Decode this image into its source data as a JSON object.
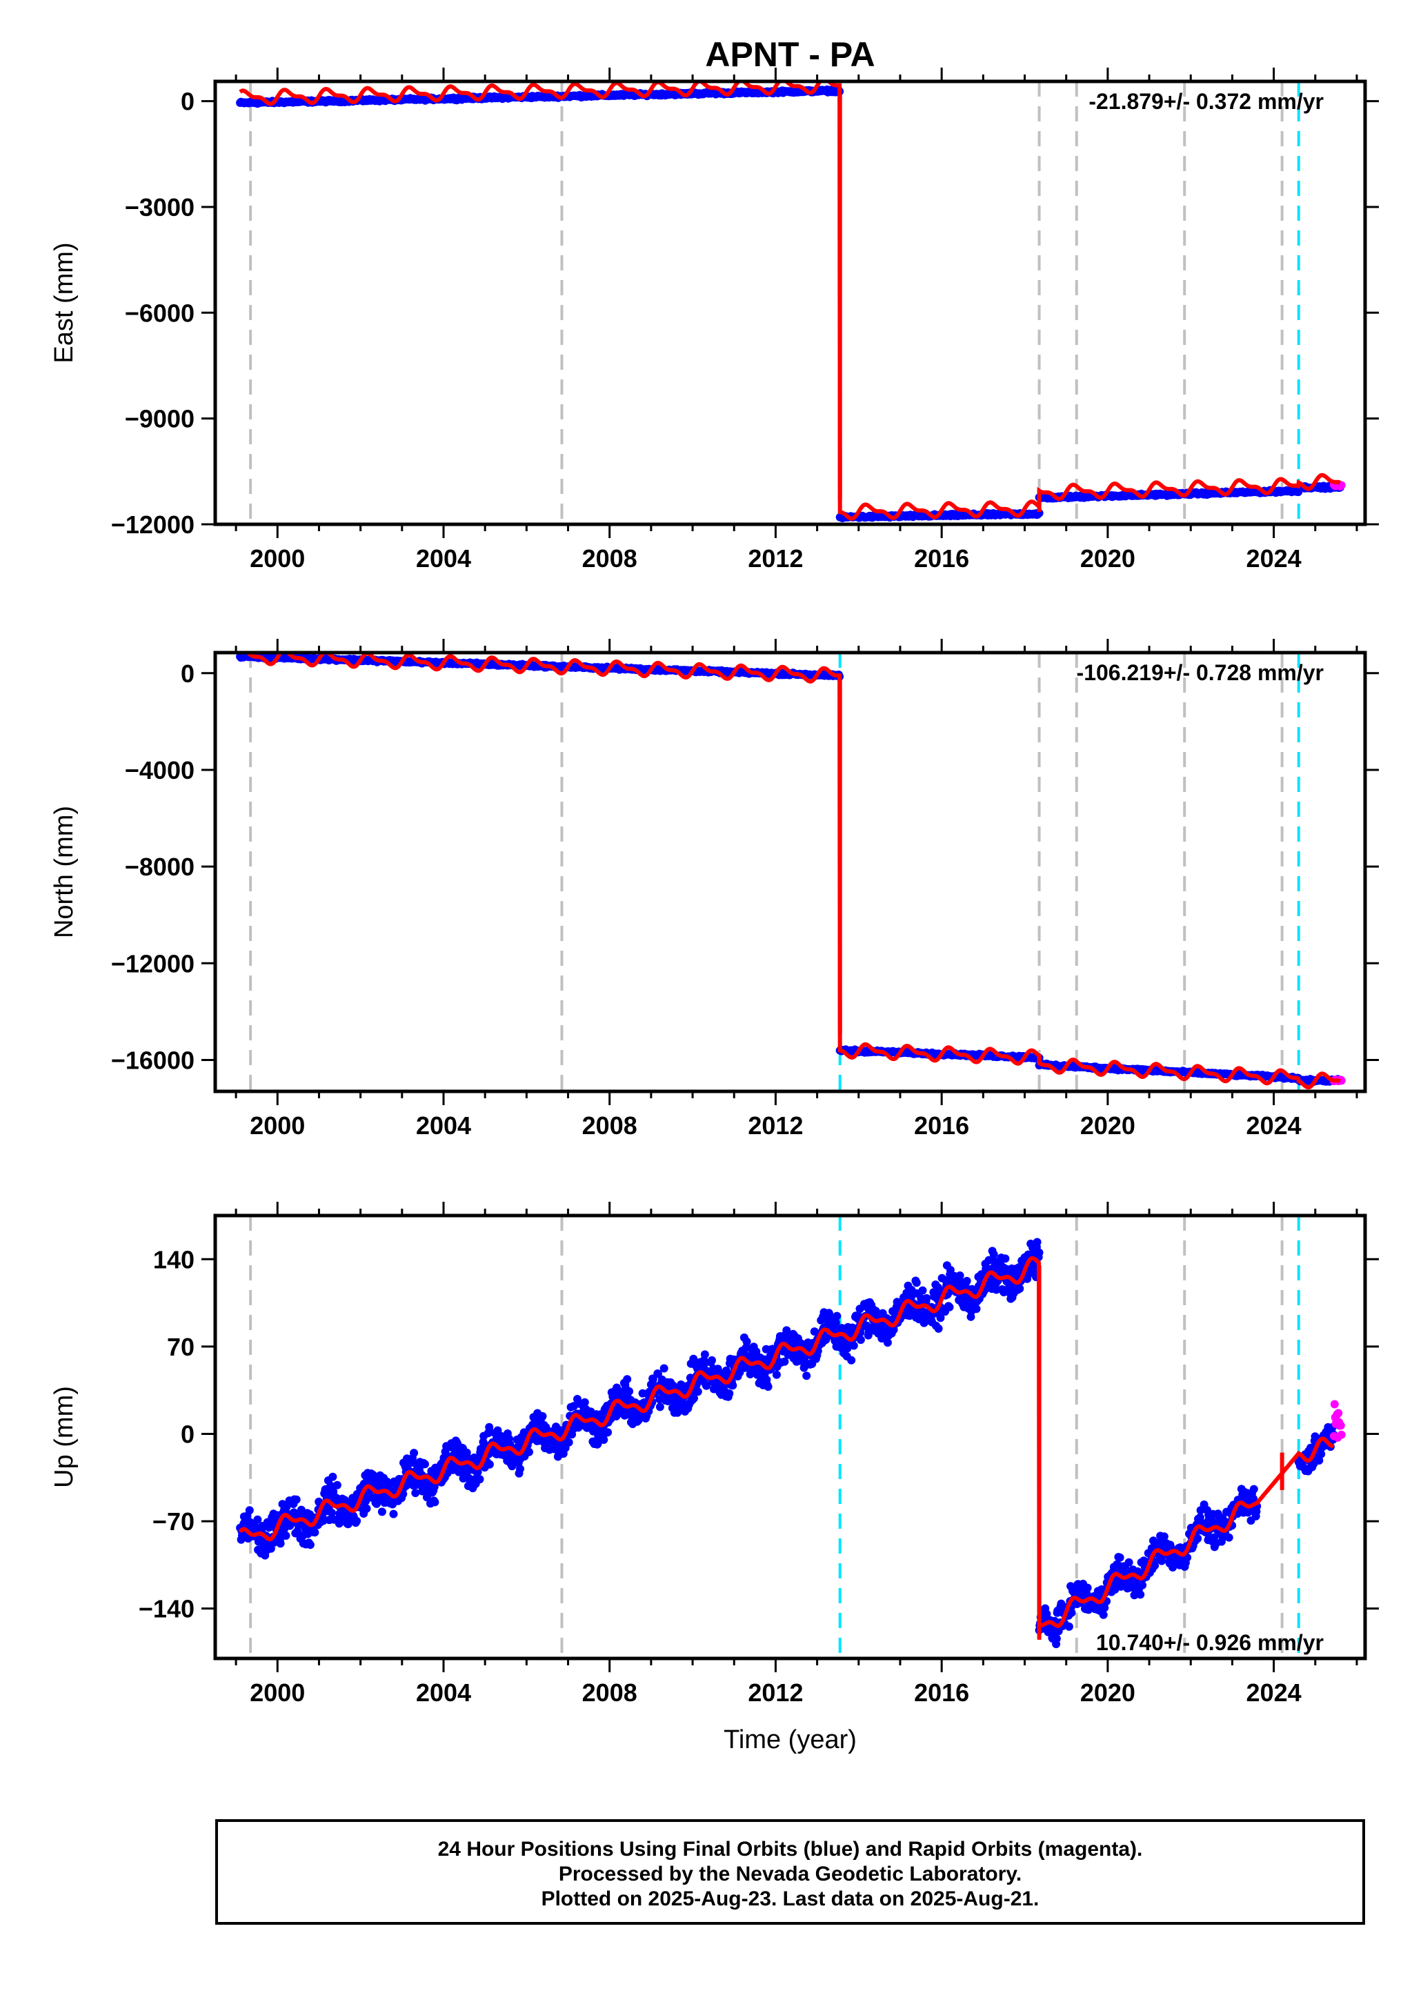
{
  "chart_data": [
    {
      "type": "scatter",
      "title": "APNT - PA",
      "ylabel": "East (mm)",
      "xlim": [
        1998.5,
        2026.2
      ],
      "ylim": [
        -12000,
        560
      ],
      "x_ticks": [
        2000,
        2004,
        2008,
        2012,
        2016,
        2020,
        2024
      ],
      "y_ticks": [
        0,
        -3000,
        -6000,
        -9000,
        -12000
      ],
      "rate_label": "-21.879+/- 0.372 mm/yr",
      "offset_lines": {
        "gray": [
          1999.35,
          2006.85,
          2018.35,
          2019.25,
          2021.85,
          2024.2
        ],
        "cyan": [
          2024.6
        ]
      },
      "segments": [
        {
          "x_start": 1999.1,
          "x_end": 2013.55,
          "y_start": -50,
          "y_end": 300
        },
        {
          "x_start": 2013.55,
          "x_end": 2018.35,
          "y_start": -11800,
          "y_end": -11700
        },
        {
          "x_start": 2018.35,
          "x_end": 2024.6,
          "y_start": -11250,
          "y_end": -11050
        },
        {
          "x_start": 2024.6,
          "x_end": 2025.6,
          "y_start": -10950,
          "y_end": -10950
        }
      ],
      "model_breaks": [
        {
          "x": 2013.55,
          "from": 200,
          "to": -11300
        },
        {
          "x": 2018.35,
          "from": -11650,
          "to": -11200
        }
      ],
      "rapid_points": {
        "x_start": 2025.45,
        "x_end": 2025.64,
        "y": -10900
      },
      "series": [
        {
          "name": "Final Orbits",
          "color": "#0000ff"
        },
        {
          "name": "Rapid Orbits",
          "color": "#ff00ff"
        }
      ],
      "model_color": "#ff0000"
    },
    {
      "type": "scatter",
      "ylabel": "North (mm)",
      "xlim": [
        1998.5,
        2026.2
      ],
      "ylim": [
        -17300,
        850
      ],
      "x_ticks": [
        2000,
        2004,
        2008,
        2012,
        2016,
        2020,
        2024
      ],
      "y_ticks": [
        0,
        -4000,
        -8000,
        -12000,
        -16000
      ],
      "rate_label": "-106.219+/- 0.728 mm/yr",
      "offset_lines": {
        "gray": [
          1999.35,
          2006.85,
          2018.35,
          2019.25,
          2021.85,
          2024.2
        ],
        "cyan": [
          2013.55,
          2024.6
        ]
      },
      "segments": [
        {
          "x_start": 1999.1,
          "x_end": 2013.55,
          "y_start": 700,
          "y_end": -100
        },
        {
          "x_start": 2013.55,
          "x_end": 2018.35,
          "y_start": -15600,
          "y_end": -15900
        },
        {
          "x_start": 2018.35,
          "x_end": 2024.6,
          "y_start": -16200,
          "y_end": -16750
        },
        {
          "x_start": 2024.6,
          "x_end": 2025.6,
          "y_start": -16850,
          "y_end": -16850
        }
      ],
      "model_breaks": [
        {
          "x": 2013.55,
          "from": -300,
          "to": -14900
        },
        {
          "x": 2018.35,
          "from": -15800,
          "to": -16100
        }
      ],
      "rapid_points": {
        "x_start": 2025.45,
        "x_end": 2025.64,
        "y": -16850
      },
      "series": [
        {
          "name": "Final Orbits",
          "color": "#0000ff"
        },
        {
          "name": "Rapid Orbits",
          "color": "#ff00ff"
        }
      ],
      "model_color": "#ff0000"
    },
    {
      "type": "scatter",
      "ylabel": "Up (mm)",
      "xlabel": "Time (year)",
      "xlim": [
        1998.5,
        2026.2
      ],
      "ylim": [
        -180,
        175
      ],
      "x_ticks": [
        2000,
        2004,
        2008,
        2012,
        2016,
        2020,
        2024
      ],
      "y_ticks": [
        140,
        70,
        0,
        -70,
        -140
      ],
      "rate_label": "10.740+/- 0.926 mm/yr",
      "offset_lines": {
        "gray": [
          1999.35,
          2006.85,
          2019.25,
          2021.85,
          2024.2
        ],
        "cyan": [
          2013.55,
          2024.6
        ]
      },
      "segments": [
        {
          "x_start": 1999.1,
          "x_end": 2018.35,
          "y_start": -85,
          "y_end": 135,
          "scatter": 22
        },
        {
          "x_start": 2018.35,
          "x_end": 2023.6,
          "y_start": -155,
          "y_end": -55,
          "scatter": 18
        },
        {
          "x_start": 2024.6,
          "x_end": 2025.45,
          "y_start": -15,
          "y_end": -10,
          "scatter": 16
        }
      ],
      "model_breaks": [
        {
          "x": 2018.35,
          "from": 135,
          "to": -165
        },
        {
          "x": 2024.2,
          "from": -45,
          "to": -15
        }
      ],
      "rapid_points": {
        "x_start": 2025.45,
        "x_end": 2025.64,
        "y": 10,
        "scatter": 25
      },
      "series": [
        {
          "name": "Final Orbits",
          "color": "#0000ff"
        },
        {
          "name": "Rapid Orbits",
          "color": "#ff00ff"
        }
      ],
      "model_color": "#ff0000"
    }
  ],
  "footer": {
    "line1": "24 Hour Positions Using Final Orbits (blue) and Rapid Orbits (magenta).",
    "line2": "Processed by the Nevada Geodetic Laboratory.",
    "line3": "Plotted on 2025-Aug-23. Last data on 2025-Aug-21."
  }
}
